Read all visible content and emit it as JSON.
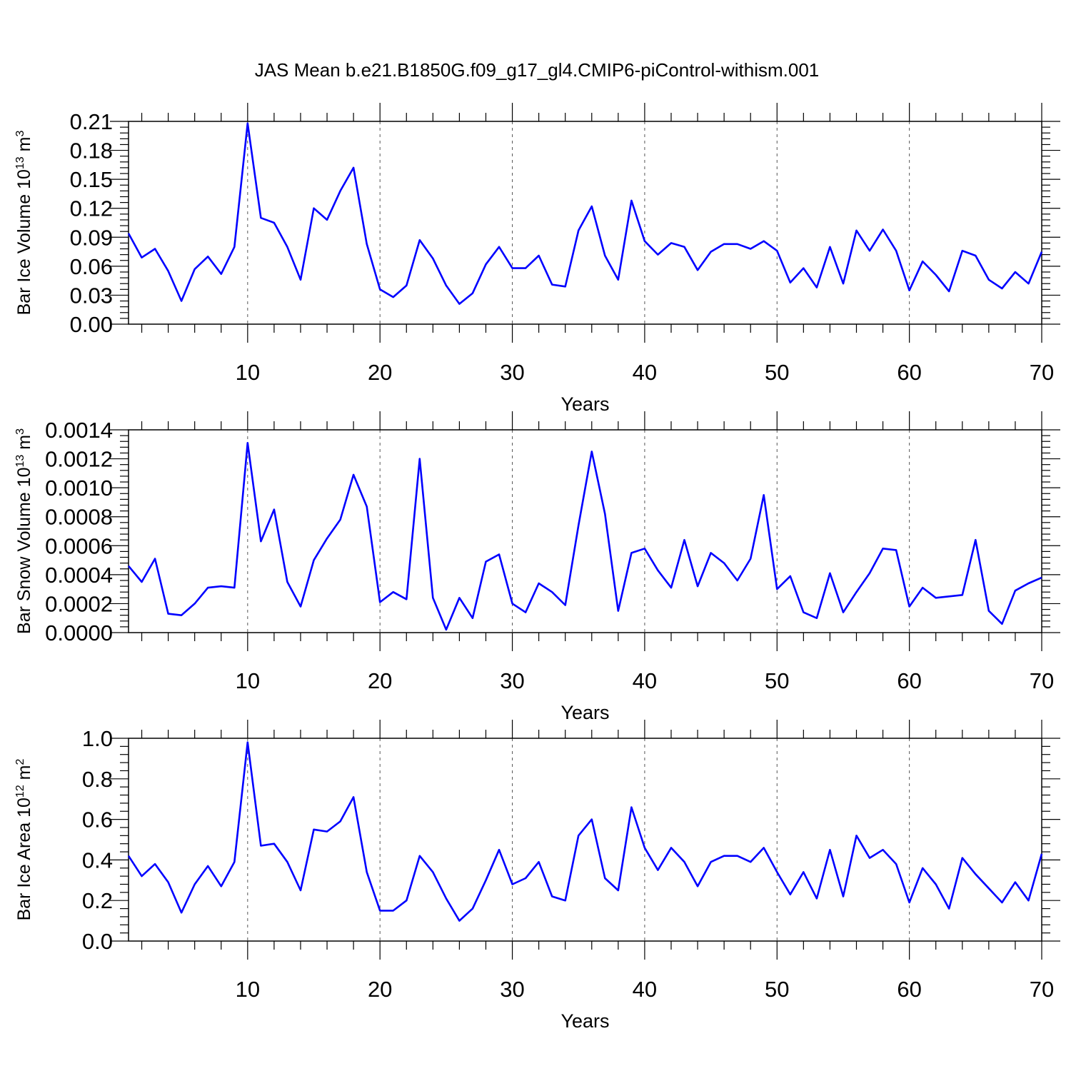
{
  "title": "JAS Mean b.e21.B1850G.f09_g17_gl4.CMIP6-piControl-withism.001",
  "colors": {
    "series": "#0000ff",
    "grid": "#555555",
    "axis": "#000000"
  },
  "chart_data": [
    {
      "type": "line",
      "xlabel": "Years",
      "ylabel": {
        "base": "Bar Ice Volume 10",
        "exp": "13",
        "unit": " m",
        "unit_exp": "3"
      },
      "xlim": [
        1,
        70
      ],
      "ylim": [
        0,
        0.21
      ],
      "xticks": [
        "10",
        "20",
        "30",
        "40",
        "50",
        "60",
        "70"
      ],
      "yticks": [
        "0.00",
        "0.03",
        "0.06",
        "0.09",
        "0.12",
        "0.15",
        "0.18",
        "0.21"
      ],
      "vgrid_at": [
        10,
        20,
        30,
        40,
        50,
        60
      ],
      "x": [
        1,
        2,
        3,
        4,
        5,
        6,
        7,
        8,
        9,
        10,
        11,
        12,
        13,
        14,
        15,
        16,
        17,
        18,
        19,
        20,
        21,
        22,
        23,
        24,
        25,
        26,
        27,
        28,
        29,
        30,
        31,
        32,
        33,
        34,
        35,
        36,
        37,
        38,
        39,
        40,
        41,
        42,
        43,
        44,
        45,
        46,
        47,
        48,
        49,
        50,
        51,
        52,
        53,
        54,
        55,
        56,
        57,
        58,
        59,
        60,
        61,
        62,
        63,
        64,
        65,
        66,
        67,
        68,
        69,
        70
      ],
      "values": [
        0.094,
        0.069,
        0.078,
        0.055,
        0.024,
        0.057,
        0.07,
        0.052,
        0.08,
        0.208,
        0.11,
        0.105,
        0.08,
        0.046,
        0.12,
        0.108,
        0.138,
        0.162,
        0.083,
        0.036,
        0.028,
        0.04,
        0.087,
        0.068,
        0.04,
        0.021,
        0.032,
        0.062,
        0.08,
        0.058,
        0.058,
        0.071,
        0.041,
        0.039,
        0.097,
        0.122,
        0.071,
        0.046,
        0.128,
        0.086,
        0.072,
        0.084,
        0.08,
        0.056,
        0.075,
        0.083,
        0.083,
        0.078,
        0.086,
        0.076,
        0.043,
        0.058,
        0.038,
        0.08,
        0.042,
        0.097,
        0.076,
        0.098,
        0.076,
        0.035,
        0.065,
        0.051,
        0.034,
        0.076,
        0.071,
        0.046,
        0.037,
        0.054,
        0.042,
        0.075
      ]
    },
    {
      "type": "line",
      "xlabel": "Years",
      "ylabel": {
        "base": "Bar Snow Volume 10",
        "exp": "13",
        "unit": " m",
        "unit_exp": "3"
      },
      "xlim": [
        1,
        70
      ],
      "ylim": [
        0,
        0.0014
      ],
      "xticks": [
        "10",
        "20",
        "30",
        "40",
        "50",
        "60",
        "70"
      ],
      "yticks": [
        "0.0000",
        "0.0002",
        "0.0004",
        "0.0006",
        "0.0008",
        "0.0010",
        "0.0012",
        "0.0014"
      ],
      "vgrid_at": [
        10,
        20,
        30,
        40,
        50,
        60
      ],
      "x": [
        1,
        2,
        3,
        4,
        5,
        6,
        7,
        8,
        9,
        10,
        11,
        12,
        13,
        14,
        15,
        16,
        17,
        18,
        19,
        20,
        21,
        22,
        23,
        24,
        25,
        26,
        27,
        28,
        29,
        30,
        31,
        32,
        33,
        34,
        35,
        36,
        37,
        38,
        39,
        40,
        41,
        42,
        43,
        44,
        45,
        46,
        47,
        48,
        49,
        50,
        51,
        52,
        53,
        54,
        55,
        56,
        57,
        58,
        59,
        60,
        61,
        62,
        63,
        64,
        65,
        66,
        67,
        68,
        69,
        70
      ],
      "values": [
        0.00046,
        0.00035,
        0.00051,
        0.00013,
        0.00012,
        0.0002,
        0.00031,
        0.00032,
        0.00031,
        0.00131,
        0.00063,
        0.00085,
        0.00035,
        0.00018,
        0.0005,
        0.00065,
        0.00078,
        0.00109,
        0.00087,
        0.00021,
        0.00028,
        0.00023,
        0.0012,
        0.00024,
        2e-05,
        0.00024,
        0.0001,
        0.00049,
        0.00054,
        0.0002,
        0.00014,
        0.00034,
        0.00028,
        0.00019,
        0.00074,
        0.00125,
        0.00082,
        0.00015,
        0.00055,
        0.00058,
        0.00043,
        0.00031,
        0.00064,
        0.00032,
        0.00055,
        0.00048,
        0.00036,
        0.00051,
        0.00095,
        0.0003,
        0.00039,
        0.00014,
        0.0001,
        0.00041,
        0.00014,
        0.00028,
        0.00041,
        0.00058,
        0.00057,
        0.00018,
        0.00031,
        0.00024,
        0.00025,
        0.00026,
        0.00064,
        0.00015,
        6e-05,
        0.00029,
        0.00034,
        0.00038
      ]
    },
    {
      "type": "line",
      "xlabel": "Years",
      "ylabel": {
        "base": "Bar Ice Area 10",
        "exp": "12",
        "unit": " m",
        "unit_exp": "2"
      },
      "xlim": [
        1,
        70
      ],
      "ylim": [
        0,
        1.0
      ],
      "xticks": [
        "10",
        "20",
        "30",
        "40",
        "50",
        "60",
        "70"
      ],
      "yticks": [
        "0.0",
        "0.2",
        "0.4",
        "0.6",
        "0.8",
        "1.0"
      ],
      "vgrid_at": [
        10,
        20,
        30,
        40,
        50,
        60
      ],
      "x": [
        1,
        2,
        3,
        4,
        5,
        6,
        7,
        8,
        9,
        10,
        11,
        12,
        13,
        14,
        15,
        16,
        17,
        18,
        19,
        20,
        21,
        22,
        23,
        24,
        25,
        26,
        27,
        28,
        29,
        30,
        31,
        32,
        33,
        34,
        35,
        36,
        37,
        38,
        39,
        40,
        41,
        42,
        43,
        44,
        45,
        46,
        47,
        48,
        49,
        50,
        51,
        52,
        53,
        54,
        55,
        56,
        57,
        58,
        59,
        60,
        61,
        62,
        63,
        64,
        65,
        66,
        67,
        68,
        69,
        70
      ],
      "values": [
        0.42,
        0.32,
        0.38,
        0.29,
        0.14,
        0.28,
        0.37,
        0.27,
        0.39,
        0.98,
        0.47,
        0.48,
        0.39,
        0.25,
        0.55,
        0.54,
        0.59,
        0.71,
        0.34,
        0.15,
        0.15,
        0.2,
        0.42,
        0.34,
        0.21,
        0.1,
        0.16,
        0.3,
        0.45,
        0.28,
        0.31,
        0.39,
        0.22,
        0.2,
        0.52,
        0.6,
        0.31,
        0.25,
        0.66,
        0.46,
        0.35,
        0.46,
        0.39,
        0.27,
        0.39,
        0.42,
        0.42,
        0.39,
        0.46,
        0.34,
        0.23,
        0.34,
        0.21,
        0.45,
        0.22,
        0.52,
        0.41,
        0.45,
        0.38,
        0.19,
        0.36,
        0.28,
        0.16,
        0.41,
        0.33,
        0.26,
        0.19,
        0.29,
        0.2,
        0.43
      ]
    }
  ]
}
